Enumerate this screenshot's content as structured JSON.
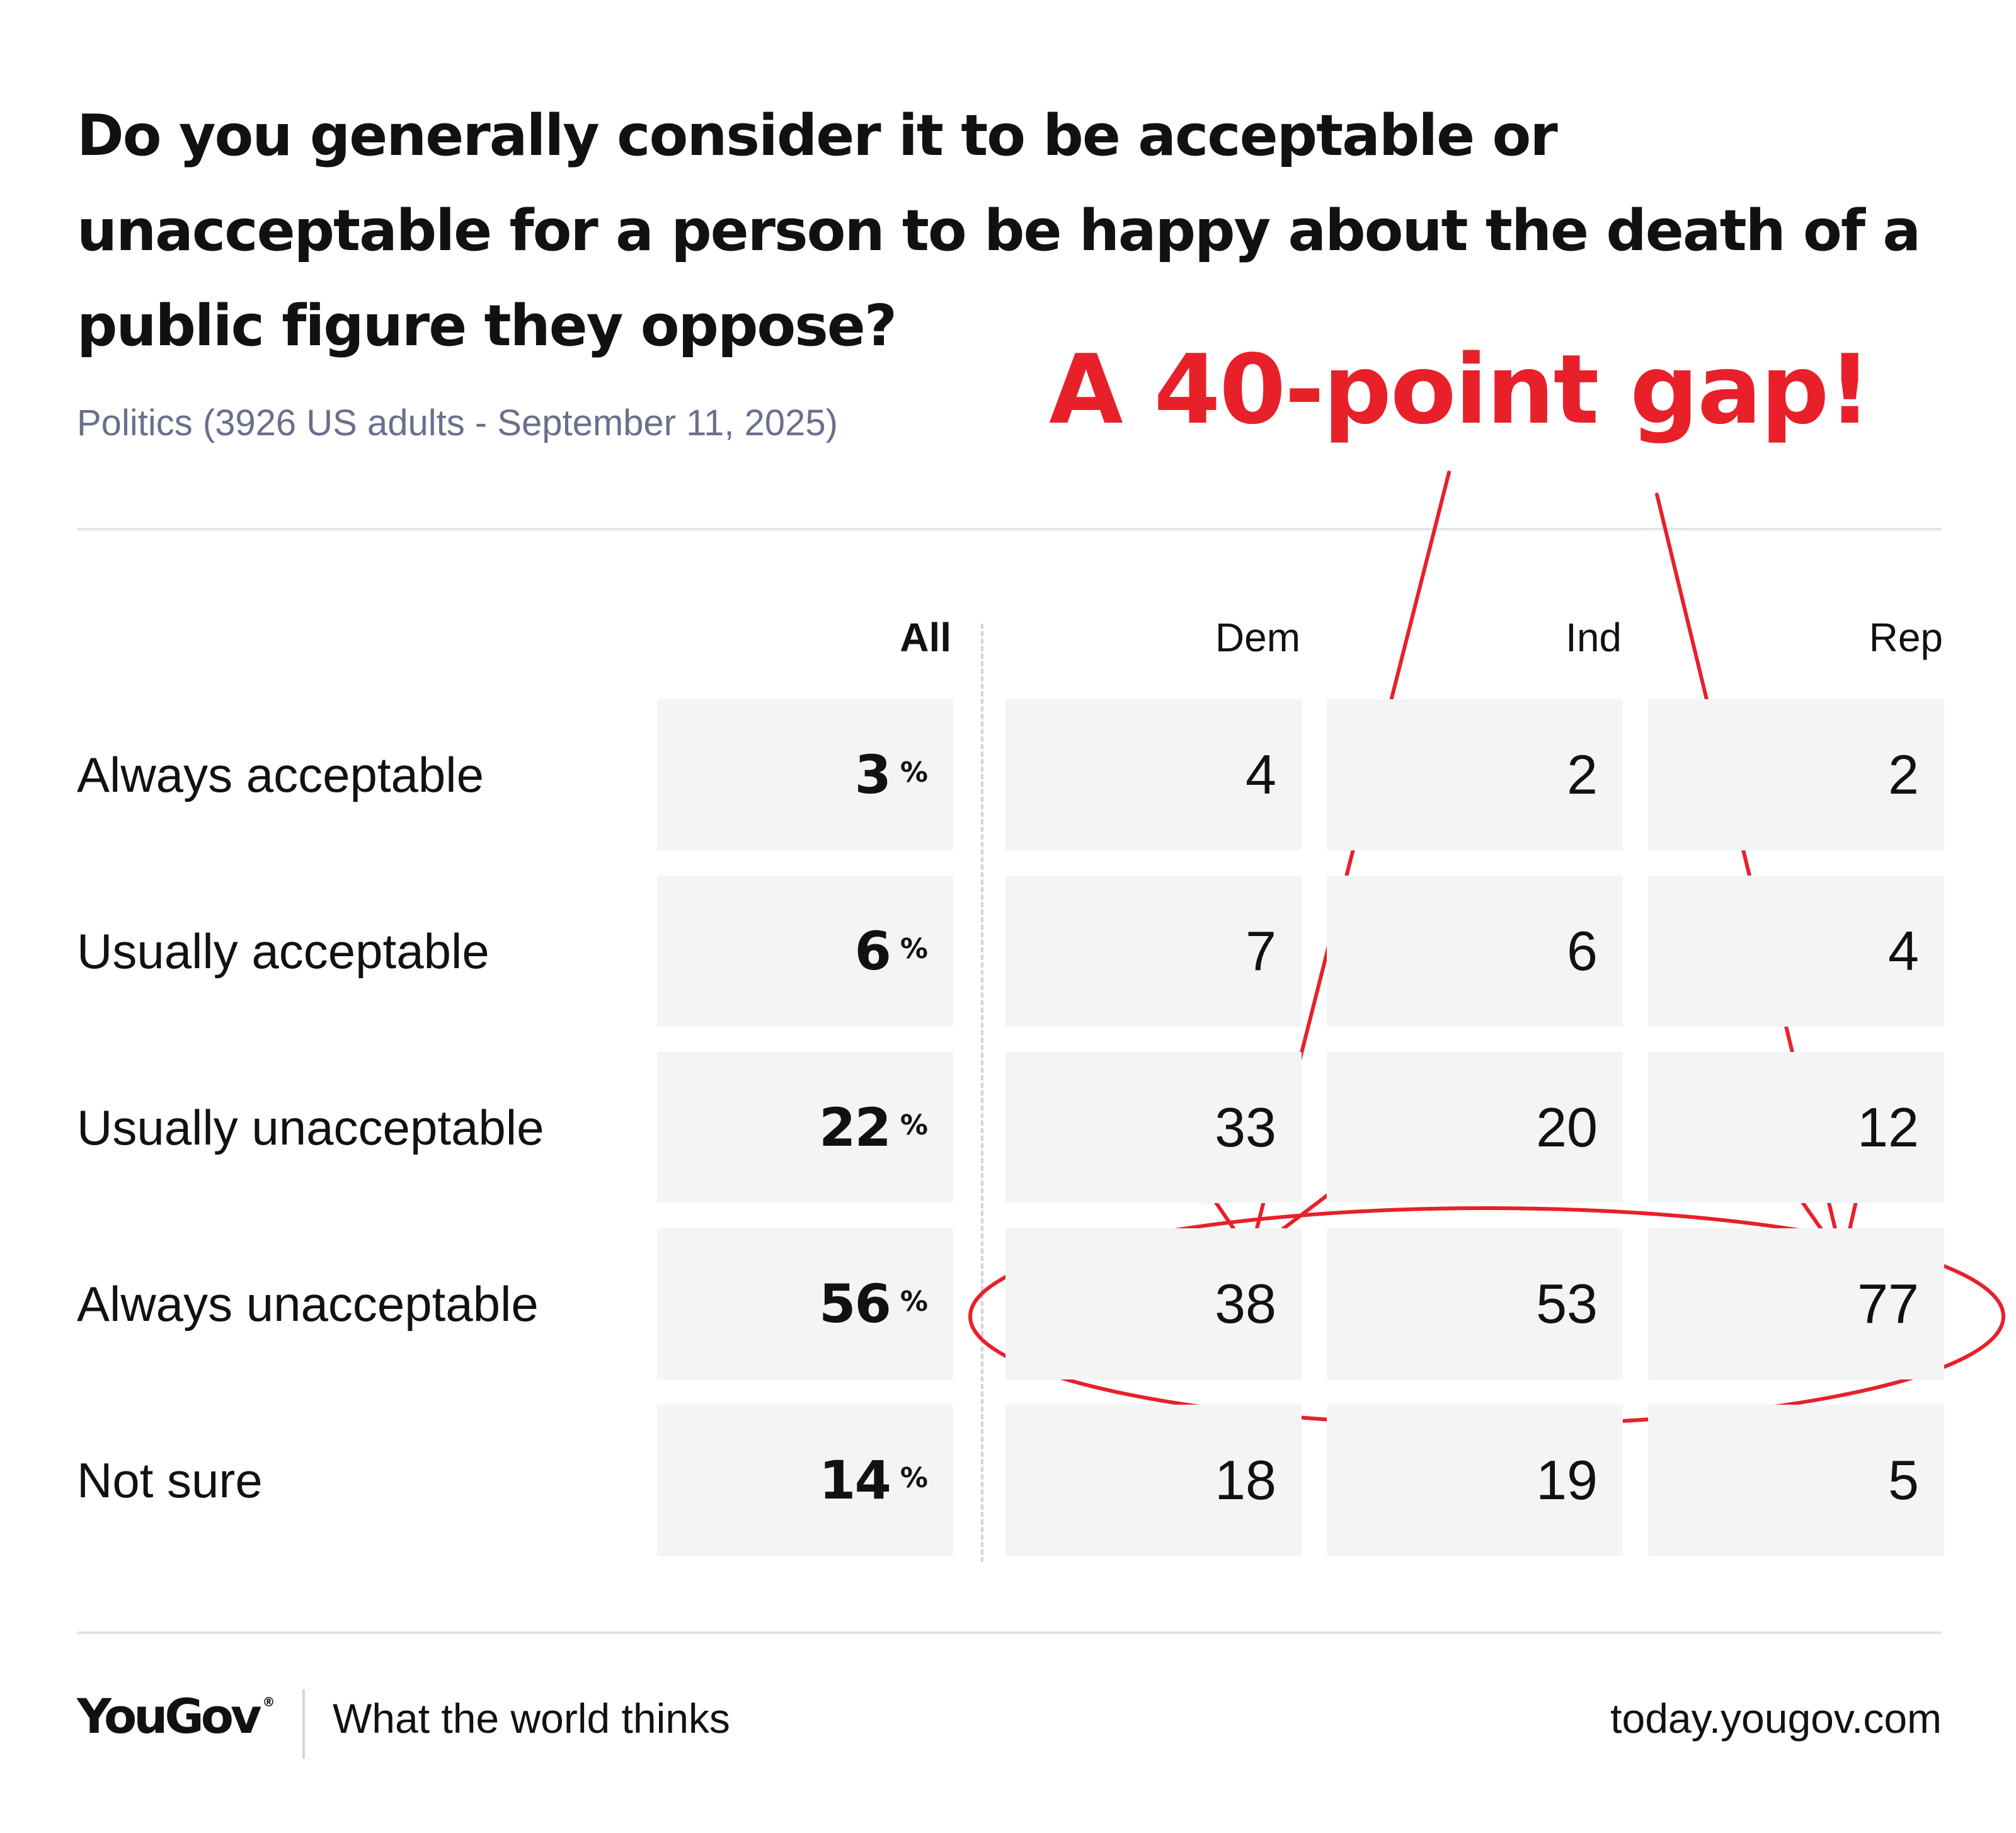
{
  "title": "Do you generally consider it to be acceptable or unacceptable for a person to be happy about the death of a public figure they oppose?",
  "subtitle": "Politics (3926 US adults - September 11, 2025)",
  "annotation": {
    "text": "A 40-point gap!",
    "color": "#e8202a"
  },
  "footer": {
    "logo": "YouGov",
    "tagline": "What the world thinks",
    "site": "today.yougov.com"
  },
  "colors": {
    "cell_bg": "#f3f4f5",
    "subtitle": "#6a6f8c",
    "annotation": "#e8202a"
  },
  "chart_data": {
    "type": "table",
    "title": "Do you generally consider it to be acceptable or unacceptable for a person to be happy about the death of a public figure they oppose?",
    "columns": [
      "All",
      "Dem",
      "Ind",
      "Rep"
    ],
    "all_suffix": "%",
    "rows": [
      {
        "label": "Always acceptable",
        "values": [
          3,
          4,
          2,
          2
        ]
      },
      {
        "label": "Usually acceptable",
        "values": [
          6,
          7,
          6,
          4
        ]
      },
      {
        "label": "Usually unacceptable",
        "values": [
          22,
          33,
          20,
          12
        ]
      },
      {
        "label": "Always unacceptable",
        "values": [
          56,
          38,
          53,
          77
        ]
      },
      {
        "label": "Not sure",
        "values": [
          14,
          18,
          19,
          5
        ]
      }
    ],
    "highlighted_row": "Always unacceptable"
  }
}
